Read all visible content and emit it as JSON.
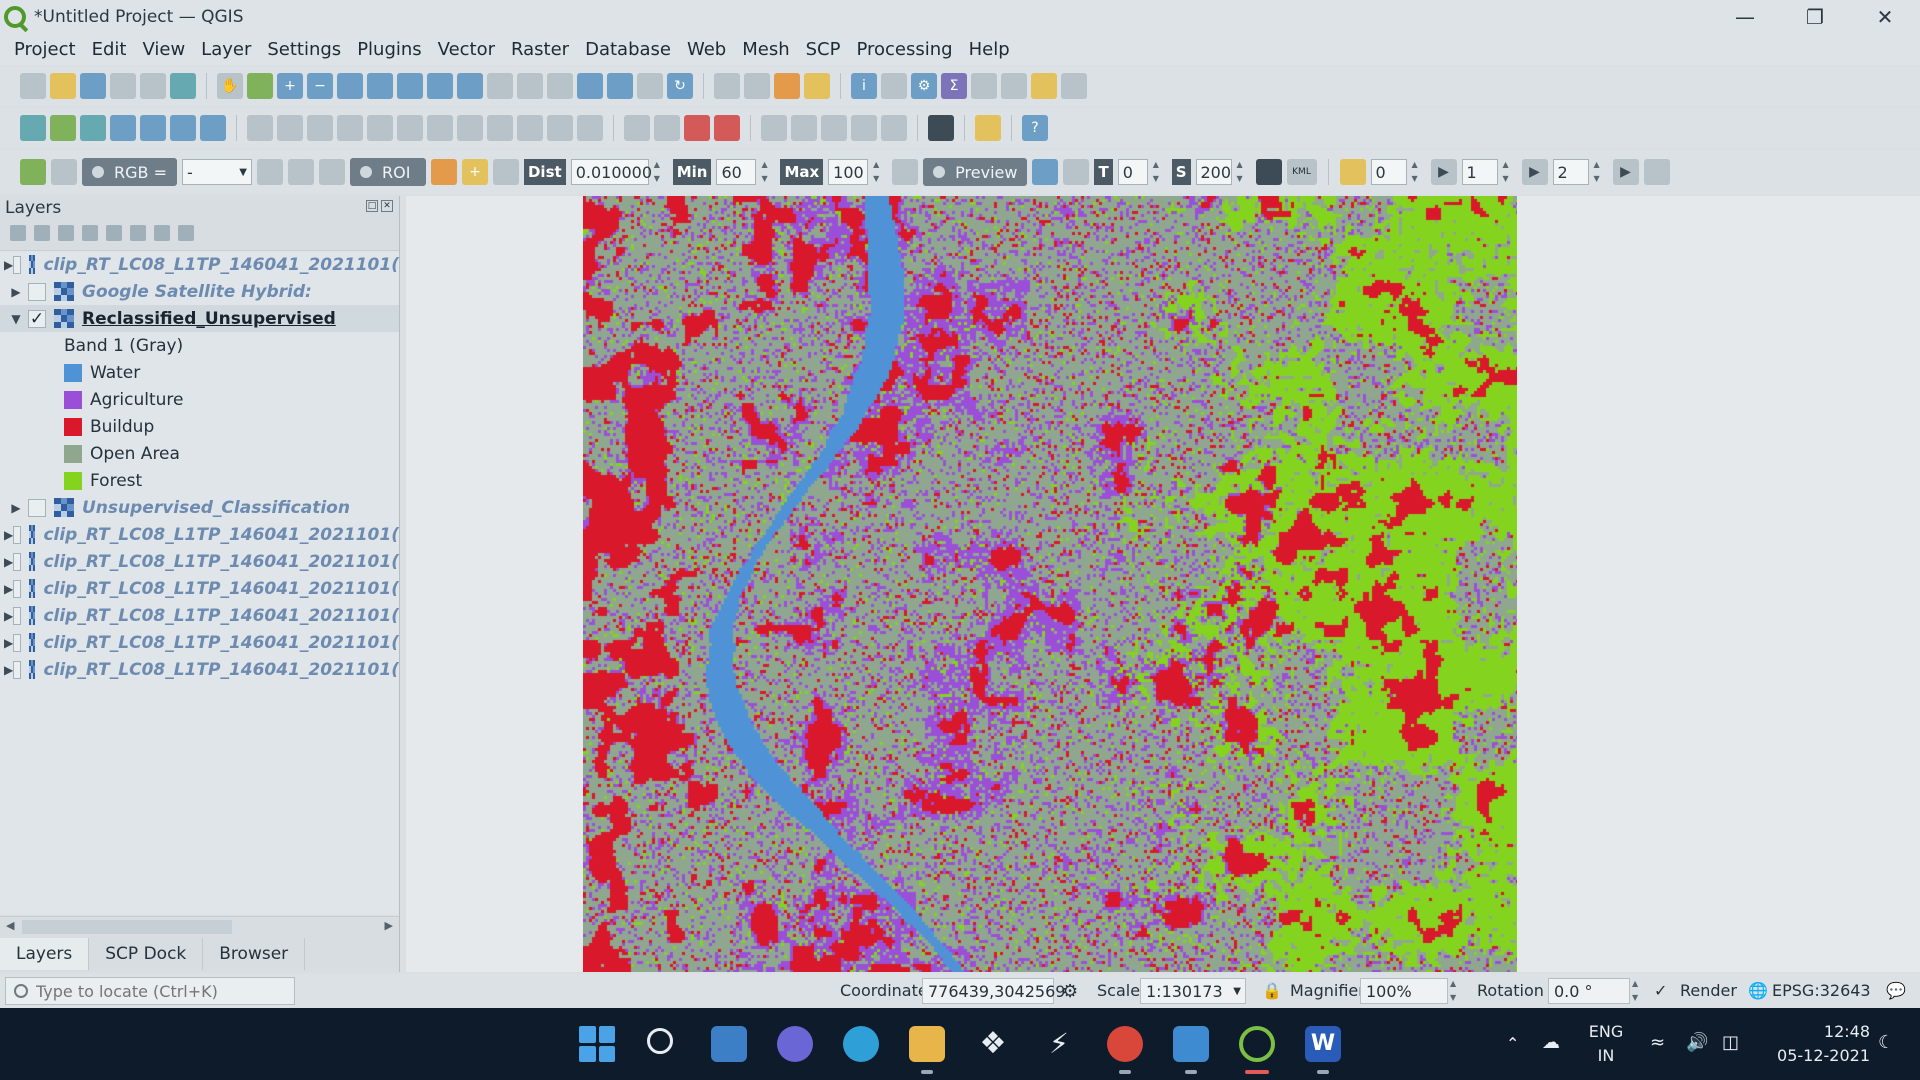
{
  "window": {
    "title": "*Untitled Project — QGIS",
    "controls": [
      "minimize-icon",
      "restore-icon",
      "close-icon"
    ]
  },
  "menu": [
    "Project",
    "Edit",
    "View",
    "Layer",
    "Settings",
    "Plugins",
    "Vector",
    "Raster",
    "Database",
    "Web",
    "Mesh",
    "SCP",
    "Processing",
    "Help"
  ],
  "scp_toolbar": {
    "rgb_label": "RGB =",
    "rgb_value": "-",
    "roi_label": "ROI",
    "dist_label": "Dist",
    "dist_value": "0.010000",
    "min_label": "Min",
    "min_value": "60",
    "max_label": "Max",
    "max_value": "100",
    "preview_label": "Preview",
    "t_label": "T",
    "t_value": "0",
    "s_label": "S",
    "s_value": "200",
    "kml_label": "KML",
    "band_a": "0",
    "band_b": "1",
    "band_c": "2"
  },
  "layers_panel": {
    "title": "Layers",
    "layers": [
      {
        "name": "clip_RT_LC08_L1TP_146041_2021101(",
        "checked": false,
        "expanded": false
      },
      {
        "name": "Google Satellite Hybrid:",
        "checked": false,
        "expanded": false
      },
      {
        "name": "Reclassified_Unsupervised",
        "checked": true,
        "expanded": true,
        "active": true
      },
      {
        "name": "Unsupervised_Classification",
        "checked": false,
        "expanded": false
      },
      {
        "name": "clip_RT_LC08_L1TP_146041_2021101(",
        "checked": false,
        "expanded": false
      },
      {
        "name": "clip_RT_LC08_L1TP_146041_2021101(",
        "checked": false,
        "expanded": false
      },
      {
        "name": "clip_RT_LC08_L1TP_146041_2021101(",
        "checked": false,
        "expanded": false
      },
      {
        "name": "clip_RT_LC08_L1TP_146041_2021101(",
        "checked": false,
        "expanded": false
      },
      {
        "name": "clip_RT_LC08_L1TP_146041_2021101(",
        "checked": false,
        "expanded": false
      },
      {
        "name": "clip_RT_LC08_L1TP_146041_2021101(",
        "checked": false,
        "expanded": false
      }
    ],
    "band_label": "Band 1 (Gray)",
    "legend": [
      {
        "label": "Water",
        "color": "#4f93d6"
      },
      {
        "label": "Agriculture",
        "color": "#9b4fd9"
      },
      {
        "label": "Buildup",
        "color": "#d9182b"
      },
      {
        "label": "Open Area",
        "color": "#8fa78f"
      },
      {
        "label": "Forest",
        "color": "#84d31f"
      }
    ],
    "tabs": [
      "Layers",
      "SCP Dock",
      "Browser"
    ]
  },
  "statusbar": {
    "locator_placeholder": "Type to locate (Ctrl+K)",
    "coordinate_label": "Coordinate",
    "coordinate_value": "776439,3042569",
    "scale_label": "Scale",
    "scale_value": "1:130173",
    "magnifier_label": "Magnifier",
    "magnifier_value": "100%",
    "rotation_label": "Rotation",
    "rotation_value": "0.0 °",
    "render_label": "Render",
    "crs": "EPSG:32643"
  },
  "taskbar": {
    "lang_line1": "ENG",
    "lang_line2": "IN",
    "time": "12:48",
    "date": "05-12-2021"
  },
  "colors": {
    "water": "#4f93d6",
    "agriculture": "#9b4fd9",
    "buildup": "#d9182b",
    "open_area": "#8fa78f",
    "forest": "#84d31f"
  }
}
